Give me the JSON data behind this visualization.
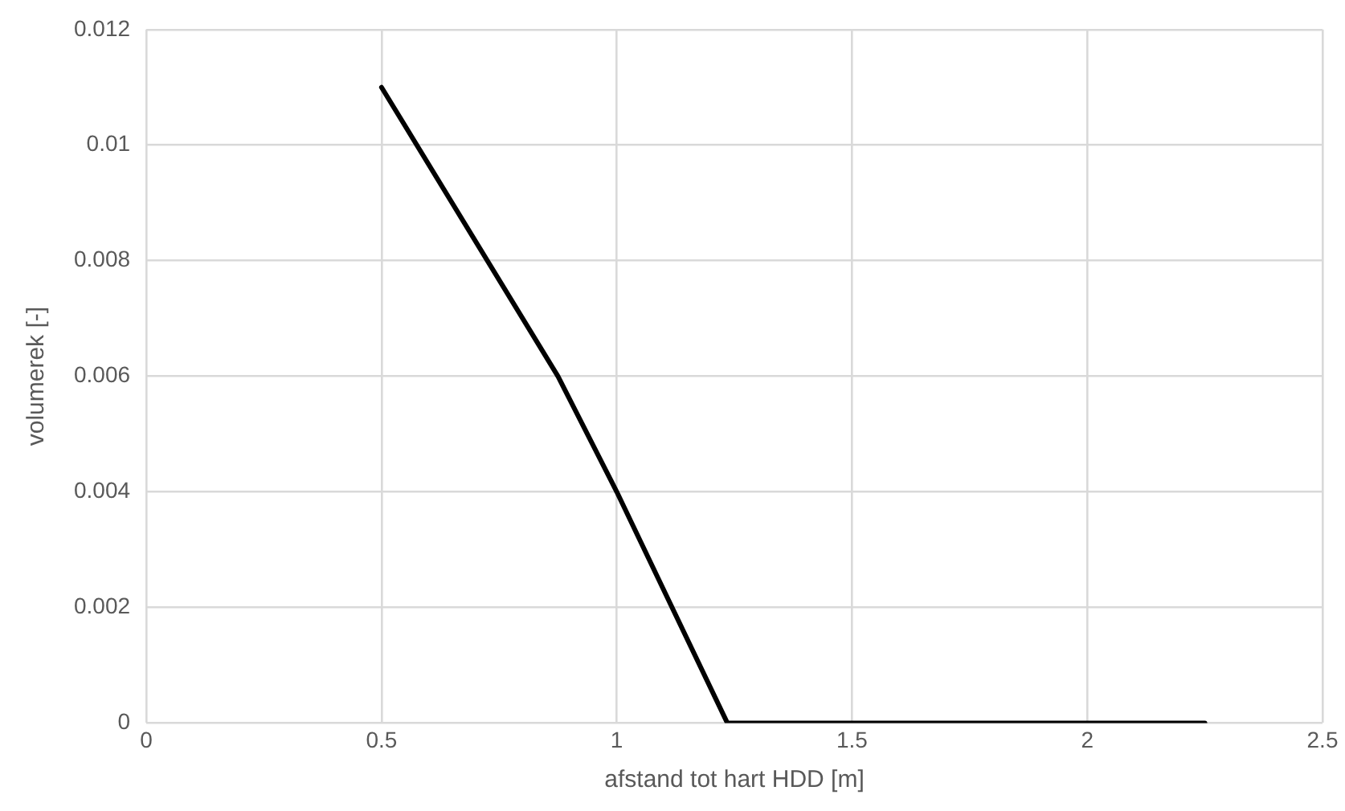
{
  "chart_data": {
    "type": "line",
    "xlabel": "afstand tot hart HDD [m]",
    "ylabel": "volumerek [-]",
    "x": [
      0.5,
      0.875,
      1.0,
      1.235,
      2.25
    ],
    "series": [
      {
        "color": "#000000",
        "values": [
          0.011,
          0.006,
          0.004,
          0,
          0
        ]
      }
    ],
    "xlim": [
      0,
      2.5
    ],
    "xticks": [
      0,
      0.5,
      1,
      1.5,
      2,
      2.5
    ],
    "ylim": [
      0,
      0.012
    ],
    "yticks": [
      0,
      0.002,
      0.004,
      0.006,
      0.008,
      0.01,
      0.012
    ],
    "grid": true,
    "legend": false,
    "marker": "none",
    "line_style": "solid"
  }
}
